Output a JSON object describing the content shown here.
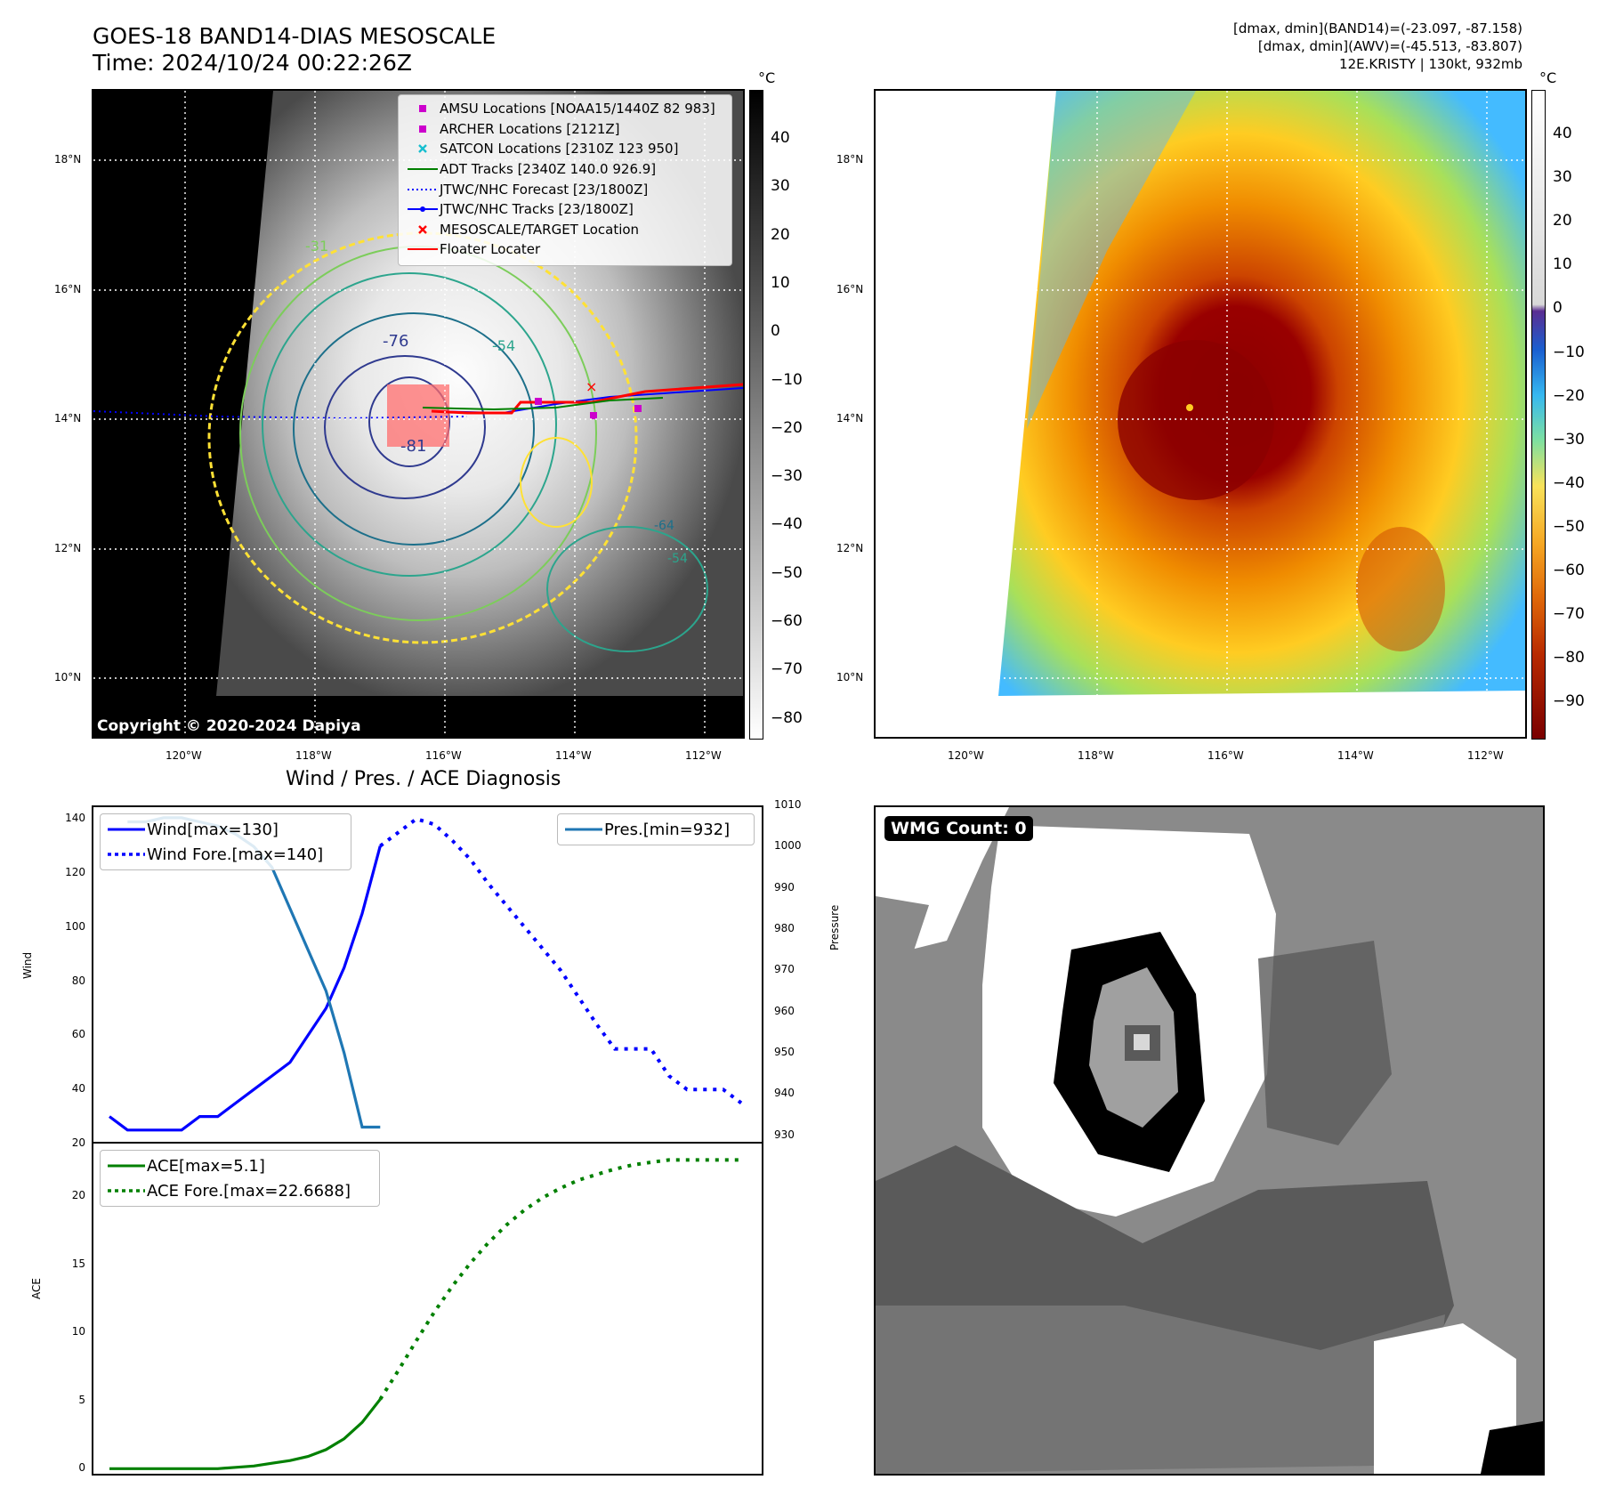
{
  "header": {
    "title_line1": "GOES-18 BAND14-DIAS MESOSCALE",
    "title_line2": "Time: 2024/10/24 00:22:26Z",
    "info_line1": "[dmax, dmin](BAND14)=(-23.097, -87.158)",
    "info_line2": "[dmax, dmin](AWV)=(-45.513, -83.807)",
    "info_line3": "12E.KRISTY | 130kt, 932mb"
  },
  "map": {
    "lat_ticks": [
      "18°N",
      "16°N",
      "14°N",
      "12°N",
      "10°N"
    ],
    "lon_ticks": [
      "120°W",
      "118°W",
      "116°W",
      "114°W",
      "112°W"
    ],
    "contour_labels": [
      "-76",
      "-54",
      "-81",
      "-31",
      "-54",
      "-64"
    ],
    "copyright": "Copyright © 2020-2024 Dapiya",
    "legend": [
      {
        "label": "AMSU Locations [NOAA15/1440Z 82 983]",
        "color": "#cc00cc",
        "symbol": "square"
      },
      {
        "label": "ARCHER Locations [2121Z]",
        "color": "#cc00cc",
        "symbol": "square"
      },
      {
        "label": "SATCON Locations [2310Z 123 950]",
        "color": "#17becf",
        "symbol": "x"
      },
      {
        "label": "ADT Tracks [2340Z 140.0 926.9]",
        "color": "#008000",
        "symbol": "line"
      },
      {
        "label": "JTWC/NHC Forecast [23/1800Z]",
        "color": "#0000ff",
        "symbol": "dotted"
      },
      {
        "label": "JTWC/NHC Tracks [23/1800Z]",
        "color": "#0000ff",
        "symbol": "line-dot"
      },
      {
        "label": "MESOSCALE/TARGET Location",
        "color": "#ff0000",
        "symbol": "x"
      },
      {
        "label": "Floater Locater",
        "color": "#ff0000",
        "symbol": "line"
      }
    ]
  },
  "colorbar_gray": {
    "unit": "°C",
    "ticks": [
      "40",
      "30",
      "20",
      "10",
      "0",
      "−10",
      "−20",
      "−30",
      "−40",
      "−50",
      "−60",
      "−70",
      "−80"
    ]
  },
  "colorbar_color": {
    "unit": "°C",
    "ticks": [
      "40",
      "30",
      "20",
      "10",
      "0",
      "−10",
      "−20",
      "−30",
      "−40",
      "−50",
      "−60",
      "−70",
      "−80",
      "−90"
    ]
  },
  "wmg": {
    "label": "WMG Count: 0"
  },
  "chart_data": [
    {
      "type": "line",
      "title": "Wind / Pres. / ACE Diagnosis",
      "ylabel": "Wind",
      "y2label": "Pressure",
      "ylim": [
        20,
        145
      ],
      "y2lim": [
        928,
        1010
      ],
      "yticks": [
        "140",
        "120",
        "100",
        "80",
        "60",
        "40",
        "20"
      ],
      "y2ticks": [
        "1010",
        "1000",
        "990",
        "980",
        "970",
        "960",
        "950",
        "940",
        "930"
      ],
      "series": [
        {
          "name": "Wind[max=130]",
          "color": "#0000ff",
          "style": "solid",
          "axis": "left",
          "x": [
            0,
            1,
            2,
            3,
            4,
            5,
            6,
            7,
            8,
            9,
            10,
            11,
            12,
            13,
            14,
            15
          ],
          "y": [
            30,
            25,
            25,
            25,
            25,
            30,
            30,
            35,
            40,
            45,
            50,
            60,
            70,
            85,
            105,
            130
          ]
        },
        {
          "name": "Wind Fore.[max=140]",
          "color": "#0000ff",
          "style": "dotted",
          "axis": "left",
          "x": [
            15,
            16,
            17,
            18,
            19,
            20,
            21,
            22,
            23,
            24,
            25,
            26,
            27,
            28,
            29,
            30,
            31,
            32,
            33,
            34,
            35
          ],
          "y": [
            130,
            135,
            140,
            138,
            132,
            125,
            116,
            108,
            100,
            92,
            84,
            74,
            64,
            55,
            55,
            55,
            45,
            40,
            40,
            40,
            35
          ]
        },
        {
          "name": "Pres.[min=932]",
          "color": "#1f77b4",
          "style": "solid",
          "axis": "right",
          "x": [
            1,
            2,
            3,
            4,
            5,
            6,
            7,
            8,
            9,
            10,
            11,
            12,
            13,
            14,
            15
          ],
          "y": [
            1006,
            1006,
            1007,
            1007,
            1006,
            1005,
            1003,
            1000,
            995,
            985,
            975,
            965,
            950,
            932,
            932
          ]
        }
      ]
    },
    {
      "type": "line",
      "ylabel": "ACE",
      "ylim": [
        -0.5,
        24
      ],
      "yticks": [
        "20",
        "15",
        "10",
        "5",
        "0"
      ],
      "series": [
        {
          "name": "ACE[max=5.1]",
          "color": "#008000",
          "style": "solid",
          "x": [
            0,
            1,
            2,
            3,
            4,
            5,
            6,
            7,
            8,
            9,
            10,
            11,
            12,
            13,
            14,
            15
          ],
          "y": [
            0,
            0,
            0,
            0,
            0,
            0,
            0,
            0.1,
            0.2,
            0.4,
            0.6,
            0.9,
            1.4,
            2.2,
            3.4,
            5.1
          ]
        },
        {
          "name": "ACE Fore.[max=22.6688]",
          "color": "#008000",
          "style": "dotted",
          "x": [
            15,
            16,
            17,
            18,
            19,
            20,
            21,
            22,
            23,
            24,
            25,
            26,
            27,
            28,
            29,
            30,
            31,
            32,
            33,
            34,
            35
          ],
          "y": [
            5.1,
            7.2,
            9.4,
            11.5,
            13.4,
            15.1,
            16.6,
            17.9,
            19.0,
            19.9,
            20.6,
            21.2,
            21.6,
            22.0,
            22.3,
            22.5,
            22.67,
            22.67,
            22.67,
            22.67,
            22.67
          ]
        }
      ]
    }
  ]
}
